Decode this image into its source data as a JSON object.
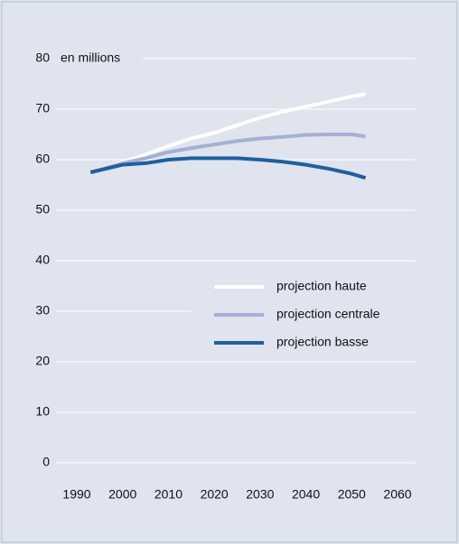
{
  "chart_data": {
    "type": "line",
    "y_label": "en millions",
    "x": [
      1993,
      2000,
      2005,
      2010,
      2015,
      2020,
      2025,
      2030,
      2035,
      2040,
      2045,
      2050,
      2053
    ],
    "series": [
      {
        "name": "projection haute",
        "color": "#ffffff",
        "values": [
          57.5,
          59.5,
          61,
          62.7,
          64.2,
          65.3,
          66.8,
          68.3,
          69.5,
          70.5,
          71.5,
          72.5,
          73
        ]
      },
      {
        "name": "projection centrale",
        "color": "#a4b0d4",
        "values": [
          57.5,
          59.3,
          60.3,
          61.5,
          62.3,
          63,
          63.7,
          64.2,
          64.5,
          64.9,
          65,
          65,
          64.6
        ]
      },
      {
        "name": "projection basse",
        "color": "#1f5fa0",
        "values": [
          57.5,
          59,
          59.3,
          60,
          60.3,
          60.3,
          60.3,
          60,
          59.6,
          59,
          58.2,
          57.2,
          56.4
        ]
      }
    ],
    "xlim": [
      1990,
      2060
    ],
    "xticks": [
      1990,
      2000,
      2010,
      2020,
      2030,
      2040,
      2050,
      2060
    ],
    "ylim": [
      0,
      80
    ],
    "yticks": [
      0,
      10,
      20,
      30,
      40,
      50,
      60,
      70,
      80
    ],
    "grid": true,
    "legend": "right"
  }
}
